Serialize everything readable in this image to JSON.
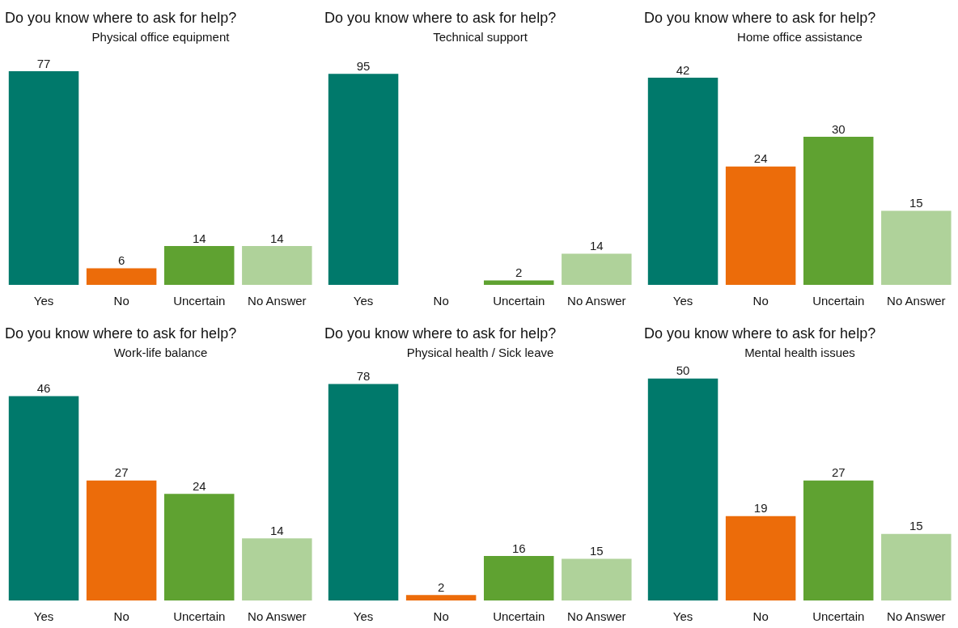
{
  "chart_data": [
    {
      "type": "bar",
      "title": "Do you know where to ask for help?",
      "subtitle": "Physical office equipment",
      "categories": [
        "Yes",
        "No",
        "Uncertain",
        "No Answer"
      ],
      "values": [
        77,
        6,
        14,
        14
      ],
      "colors": [
        "#00796b",
        "#ec6c0a",
        "#5fa231",
        "#afd29a"
      ],
      "data_labels": true,
      "grid": false,
      "legend": false
    },
    {
      "type": "bar",
      "title": "Do you know where to ask for help?",
      "subtitle": "Technical support",
      "categories": [
        "Yes",
        "No",
        "Uncertain",
        "No Answer"
      ],
      "values": [
        95,
        null,
        2,
        14
      ],
      "colors": [
        "#00796b",
        "#ec6c0a",
        "#5fa231",
        "#afd29a"
      ],
      "data_labels": true,
      "grid": false,
      "legend": false
    },
    {
      "type": "bar",
      "title": "Do you know where to ask for help?",
      "subtitle": "Home office assistance",
      "categories": [
        "Yes",
        "No",
        "Uncertain",
        "No Answer"
      ],
      "values": [
        42,
        24,
        30,
        15
      ],
      "colors": [
        "#00796b",
        "#ec6c0a",
        "#5fa231",
        "#afd29a"
      ],
      "data_labels": true,
      "grid": false,
      "legend": false
    },
    {
      "type": "bar",
      "title": "Do you know where to ask for help?",
      "subtitle": "Work-life balance",
      "categories": [
        "Yes",
        "No",
        "Uncertain",
        "No Answer"
      ],
      "values": [
        46,
        27,
        24,
        14
      ],
      "colors": [
        "#00796b",
        "#ec6c0a",
        "#5fa231",
        "#afd29a"
      ],
      "data_labels": true,
      "grid": false,
      "legend": false
    },
    {
      "type": "bar",
      "title": "Do you know where to ask for help?",
      "subtitle": "Physical health / Sick leave",
      "categories": [
        "Yes",
        "No",
        "Uncertain",
        "No Answer"
      ],
      "values": [
        78,
        2,
        16,
        15
      ],
      "colors": [
        "#00796b",
        "#ec6c0a",
        "#5fa231",
        "#afd29a"
      ],
      "data_labels": true,
      "grid": false,
      "legend": false
    },
    {
      "type": "bar",
      "title": "Do you know where to ask for help?",
      "subtitle": "Mental health issues",
      "categories": [
        "Yes",
        "No",
        "Uncertain",
        "No Answer"
      ],
      "values": [
        50,
        19,
        27,
        15
      ],
      "colors": [
        "#00796b",
        "#ec6c0a",
        "#5fa231",
        "#afd29a"
      ],
      "data_labels": true,
      "grid": false,
      "legend": false
    }
  ]
}
